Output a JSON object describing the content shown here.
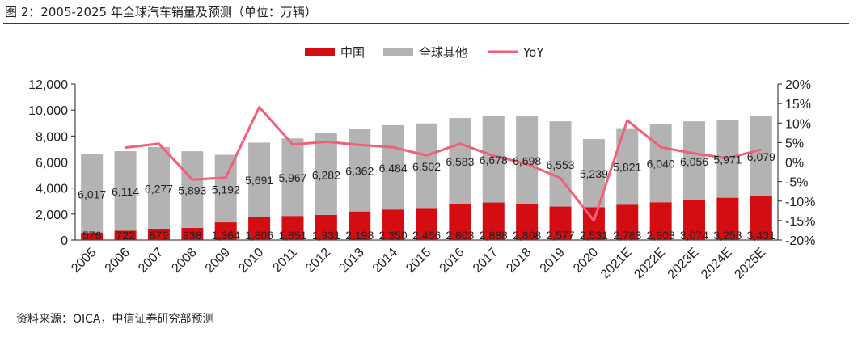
{
  "header": {
    "title": "图 2：2005-2025 年全球汽车销量及预测（单位：万辆）"
  },
  "footer": {
    "source": "资料来源：OICA，中信证券研究部预测"
  },
  "legend": {
    "items": [
      "中国",
      "全球其他",
      "YoY"
    ]
  },
  "colors": {
    "china": "#d40d12",
    "others": "#b3b3b3",
    "yoy": "#f0607a",
    "rule": "#c00000"
  },
  "chart_data": {
    "type": "bar",
    "stacked": true,
    "title": "2005-2025 年全球汽车销量及预测",
    "categories": [
      "2005",
      "2006",
      "2007",
      "2008",
      "2009",
      "2010",
      "2011",
      "2012",
      "2013",
      "2014",
      "2015",
      "2016",
      "2017",
      "2018",
      "2019",
      "2020",
      "2021E",
      "2022E",
      "2023E",
      "2024E",
      "2025E"
    ],
    "series": [
      {
        "name": "中国",
        "axis": "left",
        "values": [
          576,
          722,
          879,
          938,
          1364,
          1806,
          1851,
          1931,
          2198,
          2350,
          2466,
          2803,
          2888,
          2808,
          2577,
          2531,
          2783,
          2908,
          3074,
          3258,
          3431
        ]
      },
      {
        "name": "全球其他",
        "axis": "left",
        "values": [
          6017,
          6114,
          6277,
          5893,
          5192,
          5691,
          5967,
          6282,
          6362,
          6484,
          6502,
          6583,
          6678,
          6698,
          6553,
          5239,
          5821,
          6040,
          6056,
          5971,
          6079
        ]
      },
      {
        "name": "YoY",
        "type": "line",
        "axis": "right",
        "values": [
          null,
          3.7,
          4.7,
          -4.5,
          -4.0,
          14.1,
          4.5,
          5.2,
          4.4,
          3.8,
          1.7,
          4.7,
          1.6,
          -0.5,
          -4.1,
          -15.0,
          10.7,
          3.8,
          2.2,
          1.0,
          3.2
        ]
      }
    ],
    "ylim": [
      0,
      12000
    ],
    "yticks": [
      0,
      2000,
      4000,
      6000,
      8000,
      10000,
      12000
    ],
    "ytick_labels": [
      "0",
      "2,000",
      "4,000",
      "6,000",
      "8,000",
      "10,000",
      "12,000"
    ],
    "y2lim": [
      -20,
      20
    ],
    "y2ticks": [
      -20,
      -15,
      -10,
      -5,
      0,
      5,
      10,
      15,
      20
    ],
    "y2tick_labels": [
      "-20%",
      "-15%",
      "-10%",
      "-5%",
      "0%",
      "5%",
      "10%",
      "15%",
      "20%"
    ],
    "legend_position": "top-center",
    "grid": false
  }
}
